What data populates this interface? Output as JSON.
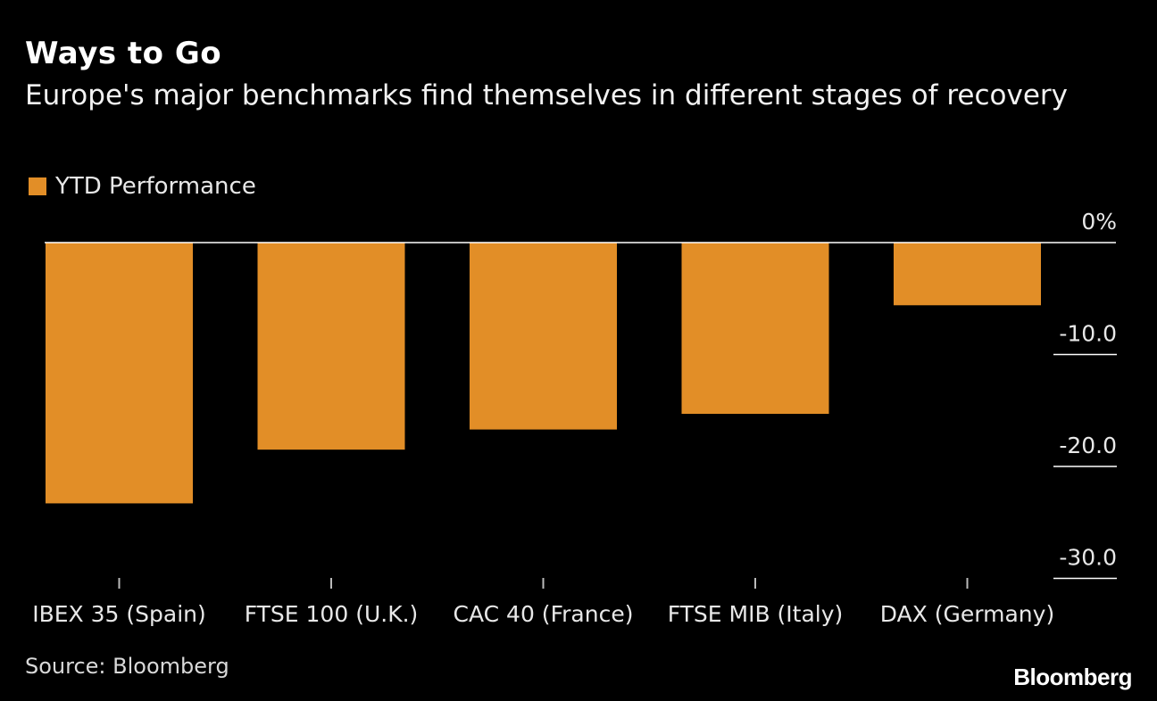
{
  "header": {
    "title": "Ways to Go",
    "subtitle": "Europe's major benchmarks find themselves in different stages of recovery"
  },
  "legend": {
    "label": "YTD Performance"
  },
  "footer": {
    "source": "Source: Bloomberg",
    "brand": "Bloomberg"
  },
  "colors": {
    "background": "#000000",
    "bar": "#e28e27",
    "zero_line": "#ffffff",
    "gridline": "#ffffff",
    "tick": "#bbbbbb"
  },
  "chart_data": {
    "type": "bar",
    "title": "Ways to Go",
    "subtitle": "Europe's major benchmarks find themselves in different stages of recovery",
    "xlabel": "",
    "ylabel": "",
    "ylim": [
      -30,
      0
    ],
    "y_ticks": [
      0,
      -10,
      -20,
      -30
    ],
    "y_tick_labels": [
      "0%",
      "-10.0",
      "-20.0",
      "-30.0"
    ],
    "y_axis_side": "right",
    "categories": [
      "IBEX 35 (Spain)",
      "FTSE 100 (U.K.)",
      "CAC 40 (France)",
      "FTSE MIB (Italy)",
      "DAX (Germany)"
    ],
    "series": [
      {
        "name": "YTD Performance",
        "values": [
          -23.3,
          -18.5,
          -16.7,
          -15.3,
          -5.6
        ]
      }
    ]
  }
}
